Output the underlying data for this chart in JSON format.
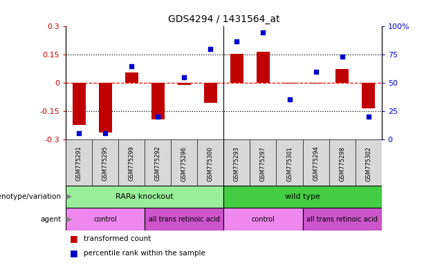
{
  "title": "GDS4294 / 1431564_at",
  "samples": [
    "GSM775291",
    "GSM775295",
    "GSM775299",
    "GSM775292",
    "GSM775296",
    "GSM775300",
    "GSM775293",
    "GSM775297",
    "GSM775301",
    "GSM775294",
    "GSM775298",
    "GSM775302"
  ],
  "bar_values": [
    -0.225,
    -0.265,
    0.055,
    -0.195,
    -0.01,
    -0.105,
    0.155,
    0.165,
    -0.005,
    -0.005,
    0.075,
    -0.135
  ],
  "scatter_values": [
    5,
    5,
    65,
    20,
    55,
    80,
    87,
    95,
    35,
    60,
    73,
    20
  ],
  "ylim_left": [
    -0.3,
    0.3
  ],
  "ylim_right": [
    0,
    100
  ],
  "yticks_left": [
    -0.3,
    -0.15,
    0,
    0.15,
    0.3
  ],
  "ytick_labels_left": [
    "-0.3",
    "-0.15",
    "0",
    "0.15",
    "0.3"
  ],
  "yticks_right": [
    0,
    25,
    50,
    75,
    100
  ],
  "ytick_labels_right": [
    "0",
    "25",
    "50",
    "75",
    "100%"
  ],
  "hlines": [
    0.15,
    0,
    -0.15
  ],
  "hline_colors": [
    "black",
    "red",
    "black"
  ],
  "hline_styles": [
    "dotted",
    "dashed",
    "dotted"
  ],
  "bar_color": "#C00000",
  "scatter_color": "#0000CC",
  "genotype_groups": [
    {
      "label": "RARa knockout",
      "start": 0,
      "end": 6,
      "color": "#99EE99"
    },
    {
      "label": "wild type",
      "start": 6,
      "end": 12,
      "color": "#44CC44"
    }
  ],
  "agent_groups": [
    {
      "label": "control",
      "start": 0,
      "end": 3,
      "color": "#EE88EE"
    },
    {
      "label": "all trans retinoic acid",
      "start": 3,
      "end": 6,
      "color": "#CC55CC"
    },
    {
      "label": "control",
      "start": 6,
      "end": 9,
      "color": "#EE88EE"
    },
    {
      "label": "all trans retinoic acid",
      "start": 9,
      "end": 12,
      "color": "#CC55CC"
    }
  ],
  "legend_items": [
    {
      "label": "transformed count",
      "color": "#C00000"
    },
    {
      "label": "percentile rank within the sample",
      "color": "#0000CC"
    }
  ],
  "left_label_color": "#CC0000",
  "right_label_color": "#0000CC",
  "xtick_bg_color": "#D8D8D8",
  "background_color": "#FFFFFF"
}
